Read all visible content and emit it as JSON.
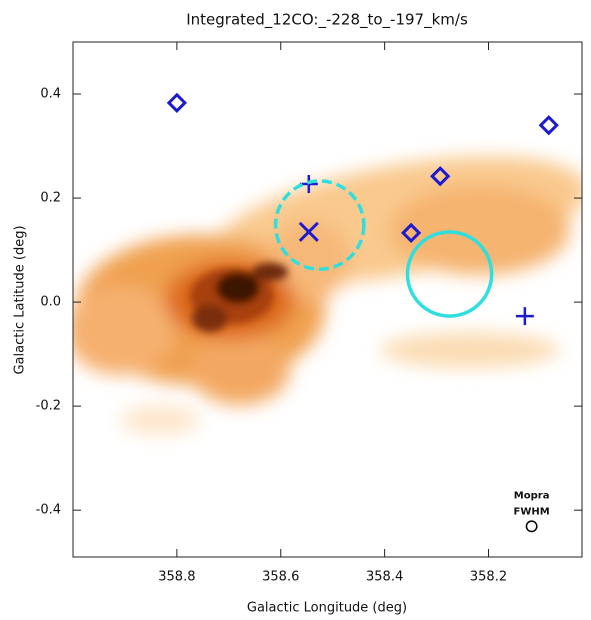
{
  "chart_data": {
    "type": "scatter",
    "title": "Integrated_12CO:_-228_to_-197_km/s",
    "x_label": "Galactic Longitude (deg)",
    "y_label": "Galactic Latitude (deg)",
    "xlim": [
      359.0,
      358.02
    ],
    "ylim": [
      -0.49,
      0.5
    ],
    "xticks": [
      358.8,
      358.6,
      358.4,
      358.2
    ],
    "yticks": [
      0.4,
      0.2,
      {
        "value": 0,
        "label": "0.0"
      },
      -0.2,
      -0.4
    ],
    "series": [
      {
        "marker": "diamond",
        "color": "#1a1ad0",
        "x": [
          358.8,
          358.084,
          358.293,
          358.349
        ],
        "y": [
          0.383,
          0.34,
          0.242,
          0.133
        ]
      },
      {
        "marker": "plus",
        "color": "#1a1ad0",
        "x": [
          358.546,
          358.13
        ],
        "y": [
          0.227,
          -0.027
        ]
      },
      {
        "marker": "cross",
        "color": "#1a1ad0",
        "x": [
          358.546
        ],
        "y": [
          0.135
        ]
      },
      {
        "marker": "dashed-circle",
        "color": "#2fdede",
        "x": [
          358.525
        ],
        "y": [
          0.148
        ],
        "r": [
          0.085
        ]
      },
      {
        "marker": "circle",
        "color": "#2fdede",
        "x": [
          358.275
        ],
        "y": [
          0.054
        ],
        "r": [
          0.081
        ]
      }
    ],
    "beam": {
      "label": [
        "Mopra",
        "FWHM"
      ],
      "x": 358.117,
      "y": -0.431,
      "r": 0.01,
      "color": "#000000"
    }
  }
}
